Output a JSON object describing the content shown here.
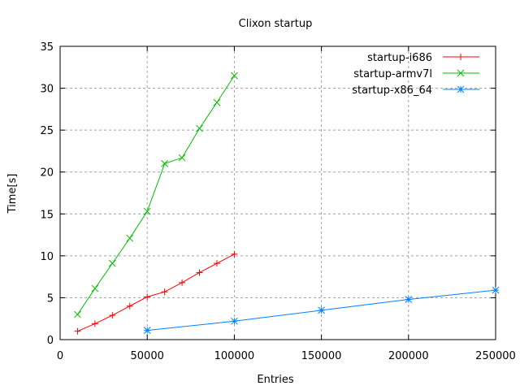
{
  "chart_data": {
    "type": "line",
    "title": "Clixon startup",
    "xlabel": "Entries",
    "ylabel": "Time[s]",
    "xlim": [
      0,
      250000
    ],
    "ylim": [
      0,
      35
    ],
    "xticks": [
      0,
      50000,
      100000,
      150000,
      200000,
      250000
    ],
    "yticks": [
      0,
      5,
      10,
      15,
      20,
      25,
      30,
      35
    ],
    "grid": true,
    "legend_position": "top-right",
    "series": [
      {
        "name": "startup-i686",
        "color": "#ff0000",
        "marker": "plus",
        "x": [
          10000,
          20000,
          30000,
          40000,
          50000,
          60000,
          70000,
          80000,
          90000,
          100000
        ],
        "y": [
          1.0,
          1.9,
          2.9,
          4.0,
          5.1,
          5.7,
          6.8,
          8.0,
          9.1,
          10.2
        ]
      },
      {
        "name": "startup-armv7l",
        "color": "#00c000",
        "marker": "cross",
        "x": [
          10000,
          20000,
          30000,
          40000,
          50000,
          60000,
          70000,
          80000,
          90000,
          100000
        ],
        "y": [
          3.0,
          6.1,
          9.1,
          12.1,
          15.3,
          21.0,
          21.7,
          25.2,
          28.3,
          31.5
        ]
      },
      {
        "name": "startup-x86_64",
        "color": "#0080ff",
        "marker": "star",
        "x": [
          50000,
          100000,
          150000,
          200000,
          250000
        ],
        "y": [
          1.1,
          2.2,
          3.5,
          4.8,
          5.9
        ]
      }
    ]
  }
}
